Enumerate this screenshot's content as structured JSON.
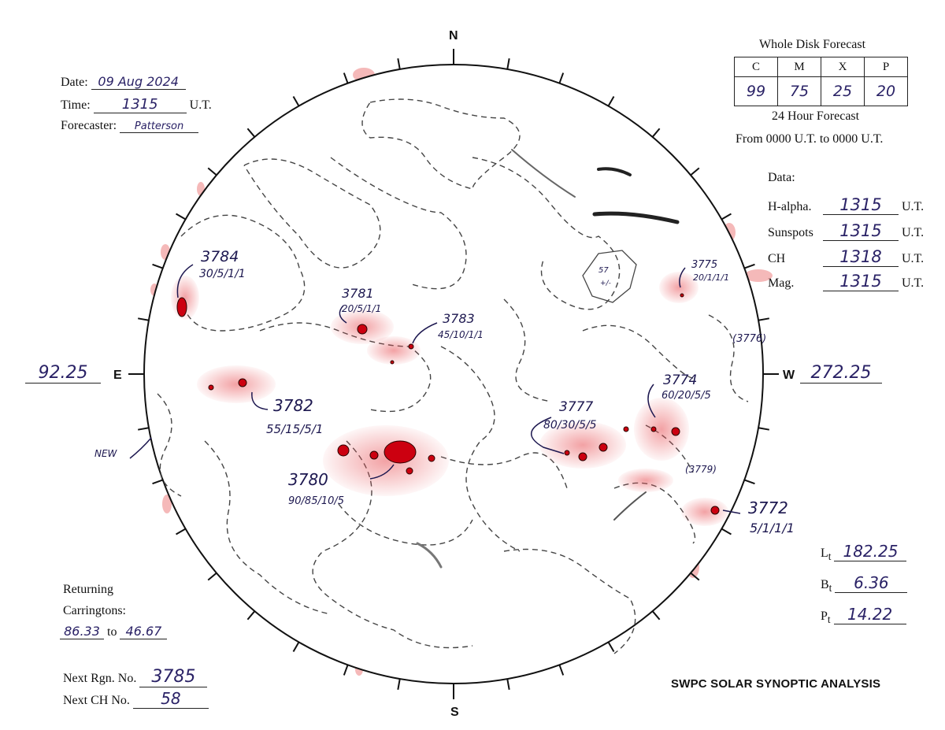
{
  "header": {
    "date_label": "Date:",
    "date_value": "09 Aug 2024",
    "time_label": "Time:",
    "time_value": "1315",
    "time_unit": "U.T.",
    "forecaster_label": "Forecaster:",
    "forecaster_value": "Patterson"
  },
  "forecast": {
    "title": "Whole Disk Forecast",
    "headers": [
      "C",
      "M",
      "X",
      "P"
    ],
    "values": [
      "99",
      "75",
      "25",
      "20"
    ],
    "period_line1": "24 Hour Forecast",
    "period_line2": "From 0000 U.T. to 0000 U.T."
  },
  "data_section": {
    "title": "Data:",
    "rows": [
      {
        "label": "H-alpha.",
        "value": "1315",
        "unit": "U.T."
      },
      {
        "label": "Sunspots",
        "value": "1315",
        "unit": "U.T."
      },
      {
        "label": "CH",
        "value": "1318",
        "unit": "U.T."
      },
      {
        "label": "Mag.",
        "value": "1315",
        "unit": "U.T."
      }
    ]
  },
  "compass": {
    "north": "N",
    "south": "S",
    "east": "E",
    "west": "W"
  },
  "limb_longitudes": {
    "east": "92.25",
    "west": "272.25"
  },
  "parameters": [
    {
      "label": "L",
      "sub": "t",
      "value": "182.25"
    },
    {
      "label": "B",
      "sub": "t",
      "value": "6.36"
    },
    {
      "label": "P",
      "sub": "t",
      "value": "14.22"
    }
  ],
  "returning": {
    "line1": "Returning",
    "line2": "Carringtons:",
    "from": "86.33",
    "to_word": "to",
    "to": "46.67"
  },
  "next": {
    "rgn_label": "Next Rgn. No.",
    "rgn_value": "3785",
    "ch_label": "Next CH No.",
    "ch_value": "58"
  },
  "footer": {
    "title": "SWPC SOLAR SYNOPTIC ANALYSIS"
  },
  "regions": [
    {
      "number": "3784",
      "class": "30/5/1/1"
    },
    {
      "number": "3781",
      "class": "20/5/1/1"
    },
    {
      "number": "3783",
      "class": "45/10/1/1"
    },
    {
      "number": "3782",
      "class": "55/15/5/1"
    },
    {
      "number": "3780",
      "class": "90/85/10/5"
    },
    {
      "number": "3777",
      "class": "80/30/5/5"
    },
    {
      "number": "3774",
      "class": "60/20/5/5"
    },
    {
      "number": "3775",
      "class": "20/1/1/1"
    },
    {
      "number": "3772",
      "class": "5/1/1/1"
    },
    {
      "number": "(3776)",
      "class": ""
    },
    {
      "number": "(3779)",
      "class": ""
    }
  ],
  "annotations": {
    "new": "NEW",
    "ch57_number": "57",
    "ch57_sign": "+/-"
  },
  "colors": {
    "ink": "#1d1850",
    "plage": "#e8555a",
    "spot": "#cc0010",
    "pencil": "#555555"
  }
}
